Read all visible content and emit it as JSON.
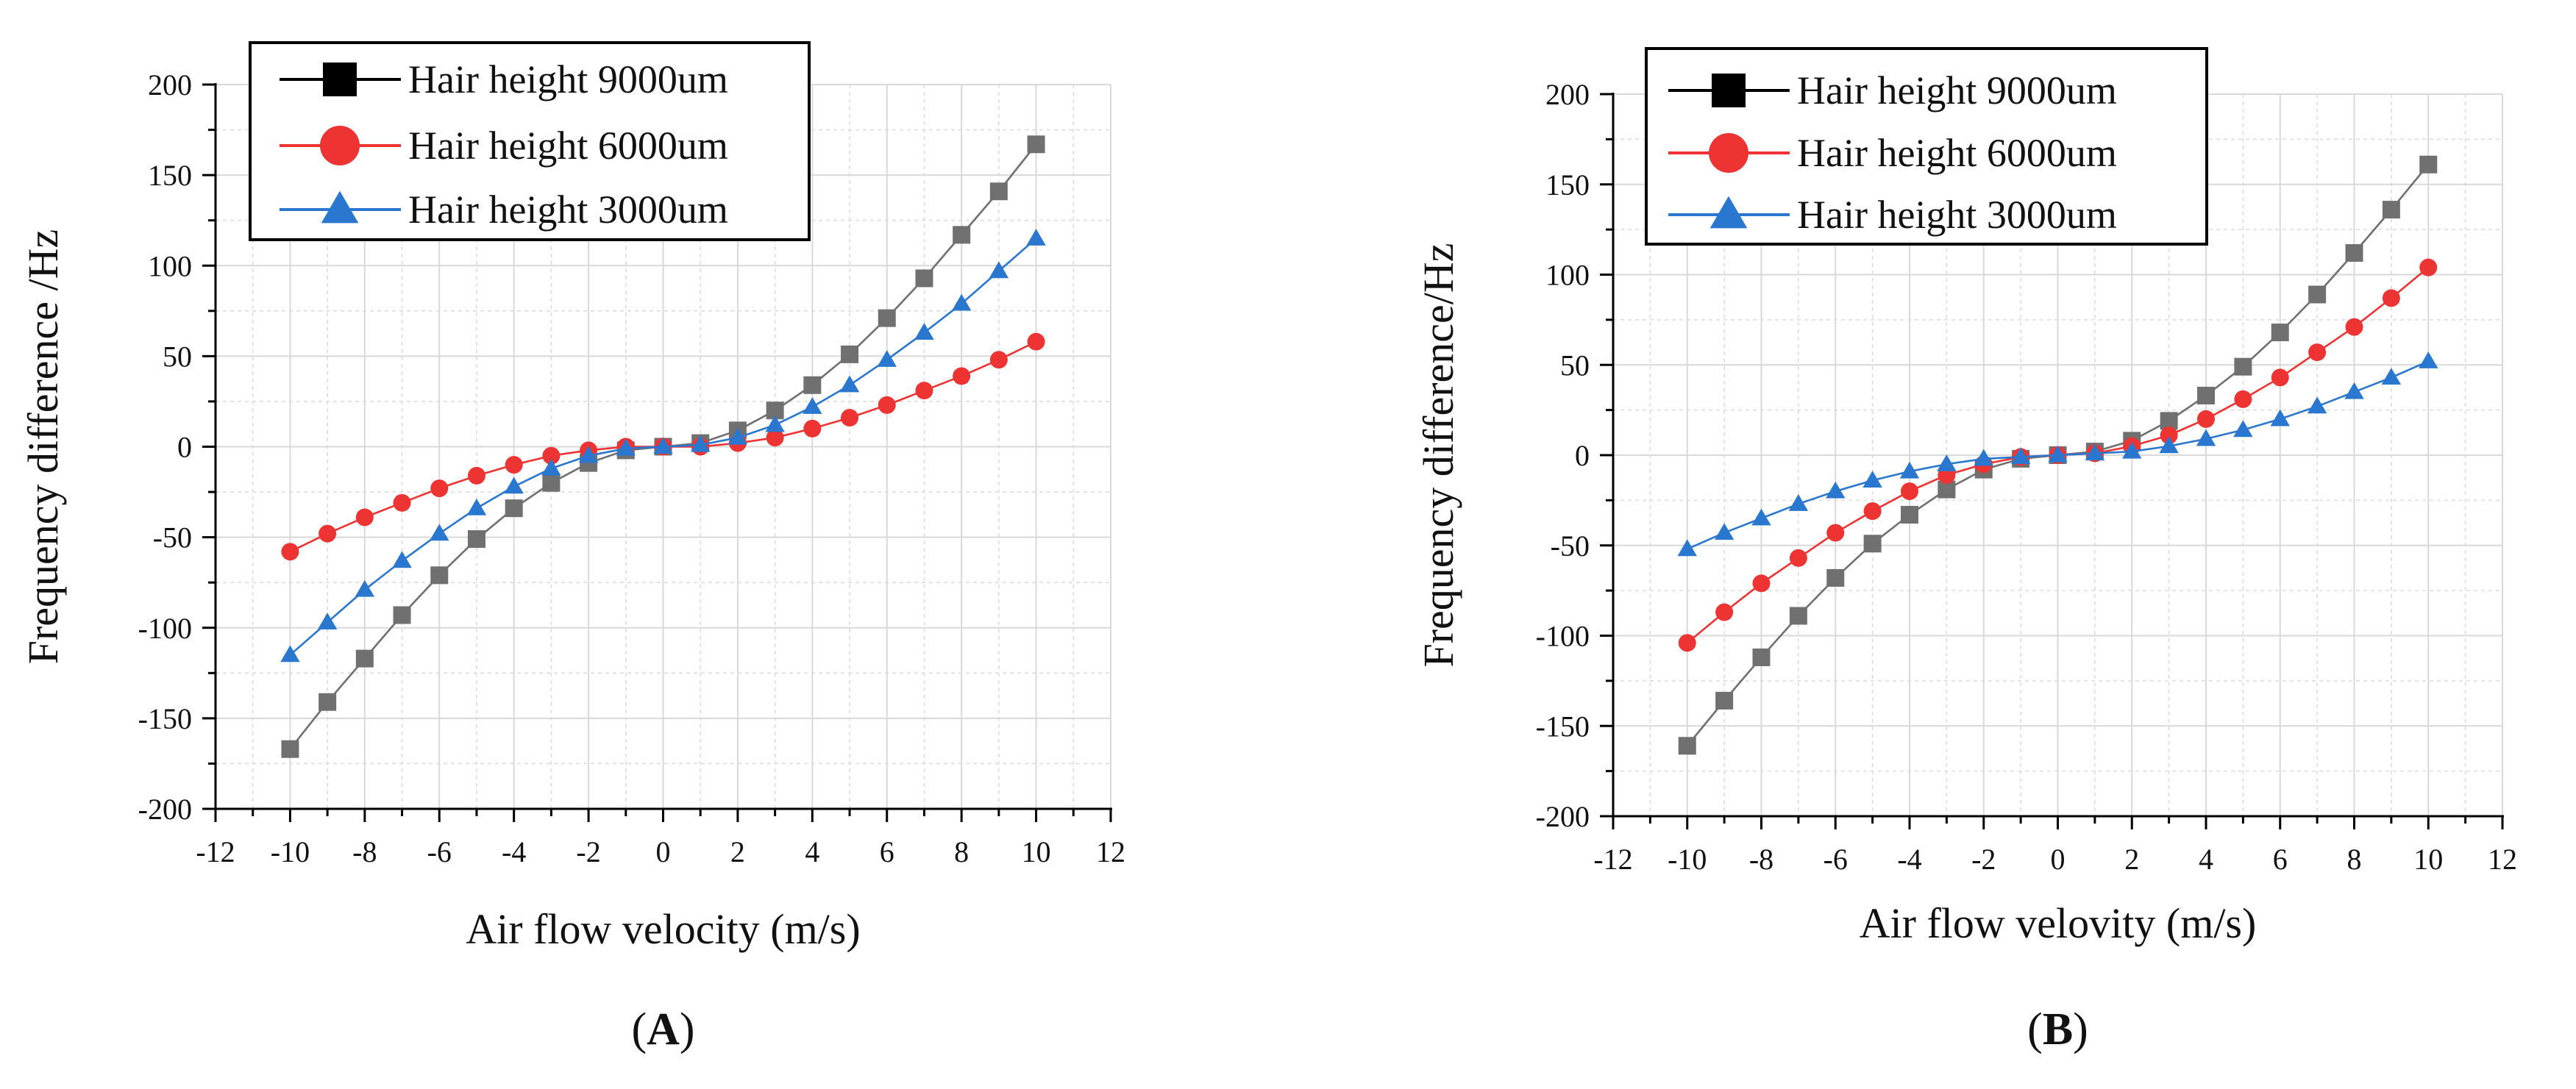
{
  "colors": {
    "series_gray": "#707070",
    "series_red": "#ee3333",
    "series_blue": "#2a77d0",
    "legend_black": "#000000"
  },
  "chart_data": [
    {
      "type": "line",
      "panel_label": "A",
      "title": "",
      "xlabel": "Air flow velocity (m/s)",
      "ylabel": "Frequency difference /Hz",
      "xlim": [
        -12,
        12
      ],
      "ylim": [
        -200,
        200
      ],
      "x_ticks": [
        "-12",
        "-10",
        "-8",
        "-6",
        "-4",
        "-2",
        "0",
        "2",
        "4",
        "6",
        "8",
        "10",
        "12"
      ],
      "y_ticks": [
        "-200",
        "-150",
        "-100",
        "-50",
        "0",
        "50",
        "100",
        "150",
        "200"
      ],
      "grid": true,
      "legend_position": "top-left",
      "x": [
        -10,
        -9,
        -8,
        -7,
        -6,
        -5,
        -4,
        -3,
        -2,
        -1,
        0,
        1,
        2,
        3,
        4,
        5,
        6,
        7,
        8,
        9,
        10
      ],
      "series": [
        {
          "name": "Hair height 9000um",
          "marker": "square",
          "color": "#707070",
          "legend_color": "#000000",
          "values": [
            -167,
            -141,
            -117,
            -93,
            -71,
            -51,
            -34,
            -20,
            -9,
            -2,
            0,
            2,
            9,
            20,
            34,
            51,
            71,
            93,
            117,
            141,
            167
          ]
        },
        {
          "name": "Hair height 6000um",
          "marker": "circle",
          "color": "#ee3333",
          "legend_color": "#ee3333",
          "values": [
            -58,
            -48,
            -39,
            -31,
            -23,
            -16,
            -10,
            -5,
            -2,
            0,
            0,
            0,
            2,
            5,
            10,
            16,
            23,
            31,
            39,
            48,
            58
          ]
        },
        {
          "name": "Hair height 3000um",
          "marker": "triangle",
          "color": "#2a77d0",
          "legend_color": "#2a77d0",
          "values": [
            -115,
            -97,
            -79,
            -63,
            -48,
            -34,
            -22,
            -12,
            -5,
            -1,
            0,
            1,
            5,
            12,
            22,
            34,
            48,
            63,
            79,
            97,
            115
          ]
        }
      ]
    },
    {
      "type": "line",
      "panel_label": "B",
      "title": "",
      "xlabel": "Air flow velovity (m/s)",
      "ylabel": "Frequency difference/Hz",
      "xlim": [
        -12,
        12
      ],
      "ylim": [
        -200,
        200
      ],
      "x_ticks": [
        "-12",
        "-10",
        "-8",
        "-6",
        "-4",
        "-2",
        "0",
        "2",
        "4",
        "6",
        "8",
        "10",
        "12"
      ],
      "y_ticks": [
        "-200",
        "-150",
        "-100",
        "-50",
        "0",
        "50",
        "100",
        "150",
        "200"
      ],
      "grid": true,
      "legend_position": "top-left",
      "x": [
        -10,
        -9,
        -8,
        -7,
        -6,
        -5,
        -4,
        -3,
        -2,
        -1,
        0,
        1,
        2,
        3,
        4,
        5,
        6,
        7,
        8,
        9,
        10
      ],
      "series": [
        {
          "name": "Hair height 9000um",
          "marker": "square",
          "color": "#707070",
          "legend_color": "#000000",
          "values": [
            -161,
            -136,
            -112,
            -89,
            -68,
            -49,
            -33,
            -19,
            -8,
            -2,
            0,
            2,
            8,
            19,
            33,
            49,
            68,
            89,
            112,
            136,
            161
          ]
        },
        {
          "name": "Hair height 6000um",
          "marker": "circle",
          "color": "#ee3333",
          "legend_color": "#ee3333",
          "values": [
            -104,
            -87,
            -71,
            -57,
            -43,
            -31,
            -20,
            -11,
            -5,
            -1,
            0,
            1,
            5,
            11,
            20,
            31,
            43,
            57,
            71,
            87,
            104
          ]
        },
        {
          "name": "Hair height 3000um",
          "marker": "triangle",
          "color": "#2a77d0",
          "legend_color": "#2a77d0",
          "values": [
            -52,
            -43,
            -35,
            -27,
            -20,
            -14,
            -9,
            -5,
            -2,
            -1,
            0,
            1,
            2,
            5,
            9,
            14,
            20,
            27,
            35,
            43,
            52
          ]
        }
      ]
    }
  ]
}
